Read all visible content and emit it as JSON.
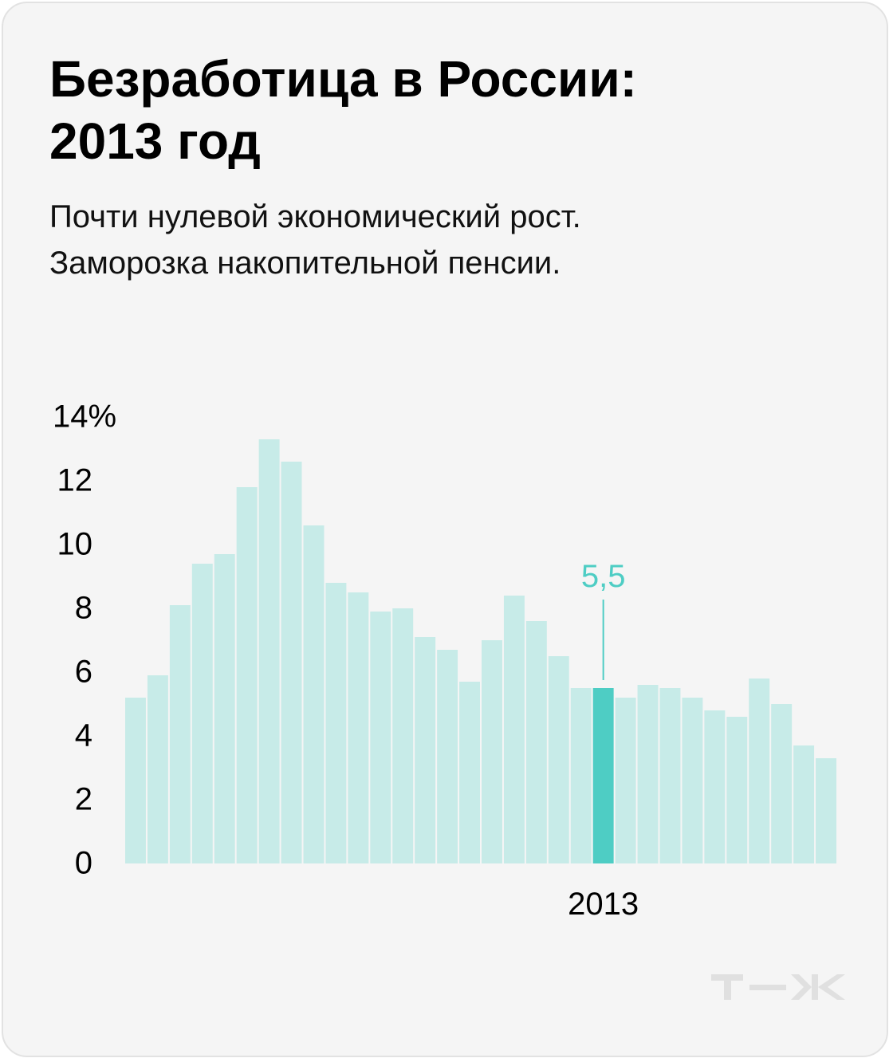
{
  "header": {
    "title_line1": "Безработица в России:",
    "title_line2": "2013 год",
    "subtitle_line1": "Почти нулевой экономический рост.",
    "subtitle_line2": "Заморозка накопительной пенсии."
  },
  "colors": {
    "bar": "#c7ebe8",
    "highlight": "#4ecdc4",
    "background": "#f5f5f5"
  },
  "brand": {
    "logo_icon": "tzh-logo-icon"
  },
  "chart_data": {
    "type": "bar",
    "ylim": [
      0,
      14
    ],
    "ticks": [
      {
        "value": 0,
        "label": "0"
      },
      {
        "value": 2,
        "label": "2"
      },
      {
        "value": 4,
        "label": "4"
      },
      {
        "value": 6,
        "label": "6"
      },
      {
        "value": 8,
        "label": "8"
      },
      {
        "value": 10,
        "label": "10"
      },
      {
        "value": 12,
        "label": "12"
      },
      {
        "value": 14,
        "label": "14%"
      }
    ],
    "values": [
      5.2,
      5.9,
      8.1,
      9.4,
      9.7,
      11.8,
      13.3,
      12.6,
      10.6,
      8.8,
      8.5,
      7.9,
      8.0,
      7.1,
      6.7,
      5.7,
      7.0,
      8.4,
      7.6,
      6.5,
      5.5,
      5.5,
      5.2,
      5.6,
      5.5,
      5.2,
      4.8,
      4.6,
      5.8,
      5.0,
      3.7,
      3.3
    ],
    "highlight_index": 21,
    "highlight_label": "5,5",
    "x_label": "2013"
  }
}
